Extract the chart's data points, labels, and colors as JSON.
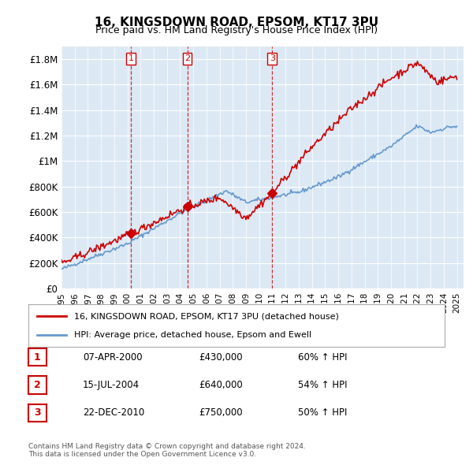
{
  "title": "16, KINGSDOWN ROAD, EPSOM, KT17 3PU",
  "subtitle": "Price paid vs. HM Land Registry's House Price Index (HPI)",
  "ylabel": "",
  "xlim_start": 1995.0,
  "xlim_end": 2025.5,
  "ylim_min": 0,
  "ylim_max": 1900000,
  "yticks": [
    0,
    200000,
    400000,
    600000,
    800000,
    1000000,
    1200000,
    1400000,
    1600000,
    1800000
  ],
  "ytick_labels": [
    "£0",
    "£200K",
    "£400K",
    "£600K",
    "£800K",
    "£1M",
    "£1.2M",
    "£1.4M",
    "£1.6M",
    "£1.8M"
  ],
  "transactions": [
    {
      "year": 2000.27,
      "price": 430000,
      "label": "1"
    },
    {
      "year": 2004.54,
      "price": 640000,
      "label": "2"
    },
    {
      "year": 2010.98,
      "price": 750000,
      "label": "3"
    }
  ],
  "vline_color": "#cc0000",
  "vline_style": "--",
  "sale_marker_color": "#cc0000",
  "hpi_line_color": "#6699cc",
  "price_line_color": "#cc0000",
  "legend_entries": [
    "16, KINGSDOWN ROAD, EPSOM, KT17 3PU (detached house)",
    "HPI: Average price, detached house, Epsom and Ewell"
  ],
  "table_rows": [
    {
      "num": "1",
      "date": "07-APR-2000",
      "price": "£430,000",
      "change": "60% ↑ HPI"
    },
    {
      "num": "2",
      "date": "15-JUL-2004",
      "price": "£640,000",
      "change": "54% ↑ HPI"
    },
    {
      "num": "3",
      "date": "22-DEC-2010",
      "price": "£750,000",
      "change": "50% ↑ HPI"
    }
  ],
  "footer": "Contains HM Land Registry data © Crown copyright and database right 2024.\nThis data is licensed under the Open Government Licence v3.0.",
  "xtick_years": [
    1995,
    1996,
    1997,
    1998,
    1999,
    2000,
    2001,
    2002,
    2003,
    2004,
    2005,
    2006,
    2007,
    2008,
    2009,
    2010,
    2011,
    2012,
    2013,
    2014,
    2015,
    2016,
    2017,
    2018,
    2019,
    2020,
    2021,
    2022,
    2023,
    2024,
    2025
  ],
  "background_color": "#dce9f5",
  "plot_bg_color": "#dce9f5"
}
